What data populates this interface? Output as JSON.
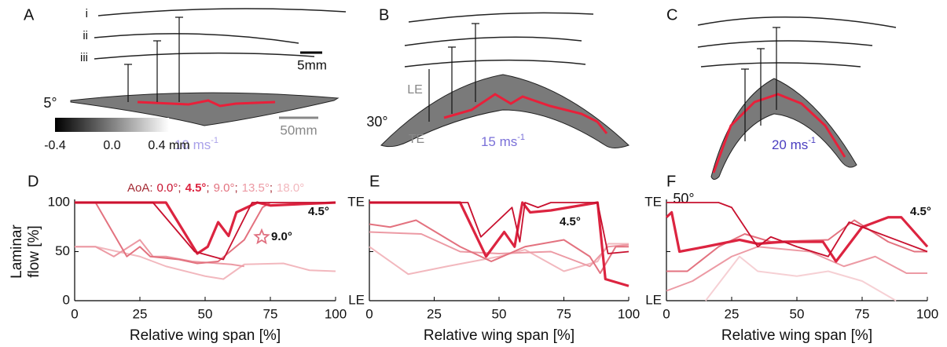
{
  "images": [
    {
      "panel_label": "A",
      "trace_labels": [
        "i",
        "ii",
        "iii"
      ],
      "angle": "5°",
      "speed": "10 ms",
      "speed_exp": "-1",
      "scale_small": "5mm",
      "scale_large": "50mm",
      "colorbar": {
        "ticks": [
          {
            "value": -0.4,
            "label": "-0.4"
          },
          {
            "value": 0.0,
            "label": "0.0"
          },
          {
            "value": 0.4,
            "label": "0.4 mm"
          }
        ],
        "lim": [
          -0.4,
          0.4
        ]
      }
    },
    {
      "panel_label": "B",
      "angle": "30°",
      "speed": "15 ms",
      "speed_exp": "-1",
      "leading_edge": "LE",
      "trailing_edge": "TE"
    },
    {
      "panel_label": "C",
      "angle": "50°",
      "speed": "20 ms",
      "speed_exp": "-1"
    }
  ],
  "chart_data": [
    {
      "type": "line",
      "panel_label": "D",
      "legend_title": "AoA:",
      "legend_separator": ";",
      "x_label": "Relative wing span [%]",
      "y_label": [
        "Laminar",
        "flow [%]"
      ],
      "xlim": [
        0,
        100
      ],
      "xticks": [
        0,
        25,
        50,
        75,
        100
      ],
      "ylim": [
        0,
        100
      ],
      "yticks": [
        0,
        50,
        100
      ],
      "series": [
        {
          "name": "0.0°",
          "color": "#c8102e",
          "line_width": 1.8,
          "x": [
            0,
            30,
            46,
            57,
            68,
            100
          ],
          "values": [
            100,
            100,
            50,
            42,
            100,
            100
          ]
        },
        {
          "name": "4.5°",
          "color": "#dc2440",
          "line_width": 3.2,
          "x": [
            0,
            35,
            47,
            51,
            55,
            59,
            62,
            70,
            75,
            100
          ],
          "values": [
            100,
            100,
            48,
            55,
            80,
            66,
            90,
            100,
            97,
            100
          ]
        },
        {
          "name": "9.0°",
          "color": "#e3727f",
          "line_width": 2,
          "x": [
            0,
            8,
            20,
            25,
            29,
            40,
            47,
            55,
            65,
            72,
            75
          ],
          "values": [
            100,
            100,
            45,
            55,
            45,
            42,
            38,
            40,
            62,
            95,
            100
          ]
        },
        {
          "name": "13.5°",
          "color": "#ec9aa4",
          "line_width": 2,
          "x": [
            0,
            8,
            15,
            25,
            30,
            35,
            45,
            60,
            65
          ],
          "values": [
            55,
            55,
            45,
            62,
            45,
            45,
            40,
            37,
            35
          ]
        },
        {
          "name": "18.0°",
          "color": "#f2b8be",
          "line_width": 2,
          "x": [
            0,
            8,
            25,
            35,
            50,
            57,
            65,
            80,
            90,
            100
          ],
          "values": [
            55,
            55,
            45,
            35,
            25,
            22,
            37,
            38,
            31,
            30
          ]
        }
      ],
      "annotations": [
        {
          "text": "4.5°",
          "color": "#a32a33"
        },
        {
          "text": "9.0°",
          "color": "#e07080",
          "marker": "star"
        }
      ]
    },
    {
      "type": "line",
      "panel_label": "E",
      "x_label": "Relative wing span [%]",
      "xlim": [
        0,
        100
      ],
      "xticks": [
        0,
        25,
        50,
        75,
        100
      ],
      "ylim": [
        0,
        100
      ],
      "yticks": [
        {
          "value": 0,
          "label": "LE"
        },
        {
          "value": 50,
          "label": null
        },
        {
          "value": 100,
          "label": "TE"
        }
      ],
      "series": [
        {
          "name": "0.0°",
          "color": "#c8102e",
          "line_width": 1.8,
          "x": [
            0,
            38,
            43,
            55,
            58,
            60,
            65,
            70,
            88,
            92,
            100
          ],
          "values": [
            100,
            100,
            65,
            95,
            60,
            100,
            95,
            100,
            100,
            48,
            50
          ]
        },
        {
          "name": "4.5°",
          "color": "#dc2440",
          "line_width": 3.2,
          "x": [
            0,
            35,
            45,
            52,
            56,
            59,
            62,
            70,
            88,
            91,
            100
          ],
          "values": [
            100,
            100,
            45,
            70,
            55,
            100,
            90,
            92,
            100,
            22,
            15
          ]
        },
        {
          "name": "9.0°",
          "color": "#e3727f",
          "line_width": 2,
          "x": [
            0,
            8,
            18,
            35,
            47,
            60,
            75,
            85,
            89,
            95,
            100
          ],
          "values": [
            78,
            75,
            82,
            55,
            40,
            55,
            62,
            45,
            28,
            55,
            55
          ]
        },
        {
          "name": "13.5°",
          "color": "#ec9aa4",
          "line_width": 2,
          "x": [
            0,
            20,
            35,
            50,
            70,
            85,
            92,
            100
          ],
          "values": [
            70,
            68,
            50,
            48,
            50,
            35,
            55,
            57
          ]
        },
        {
          "name": "18.0°",
          "color": "#f2b8be",
          "line_width": 2,
          "x": [
            0,
            15,
            30,
            50,
            60,
            75,
            88,
            92,
            100
          ],
          "values": [
            55,
            27,
            35,
            45,
            52,
            30,
            40,
            58,
            58
          ]
        }
      ],
      "annotations": [
        {
          "text": "4.5°",
          "color": "#a32a33"
        }
      ]
    },
    {
      "type": "line",
      "panel_label": "F",
      "x_label": "Relative wing span [%]",
      "xlim": [
        0,
        100
      ],
      "xticks": [
        0,
        25,
        50,
        75,
        100
      ],
      "ylim": [
        0,
        100
      ],
      "yticks": [
        {
          "value": 0,
          "label": "LE"
        },
        {
          "value": 50,
          "label": null
        },
        {
          "value": 100,
          "label": "TE"
        }
      ],
      "series": [
        {
          "name": "0.0°",
          "color": "#c8102e",
          "line_width": 1.8,
          "x": [
            0,
            20,
            25,
            35,
            40,
            50,
            62,
            70,
            80,
            100
          ],
          "values": [
            100,
            100,
            95,
            55,
            65,
            55,
            45,
            80,
            70,
            50
          ]
        },
        {
          "name": "4.5°",
          "color": "#dc2440",
          "line_width": 3.2,
          "x": [
            0,
            2,
            5,
            15,
            28,
            35,
            45,
            60,
            65,
            75,
            85,
            90,
            100
          ],
          "values": [
            85,
            90,
            50,
            55,
            62,
            58,
            60,
            60,
            40,
            75,
            85,
            85,
            55
          ]
        },
        {
          "name": "9.0°",
          "color": "#e3727f",
          "line_width": 2,
          "x": [
            0,
            8,
            20,
            30,
            40,
            62,
            72,
            85,
            95,
            100
          ],
          "values": [
            30,
            30,
            55,
            68,
            60,
            62,
            82,
            60,
            50,
            50
          ]
        },
        {
          "name": "13.5°",
          "color": "#ec9aa4",
          "line_width": 2,
          "x": [
            0,
            10,
            25,
            35,
            55,
            68,
            80,
            92,
            100
          ],
          "values": [
            10,
            20,
            45,
            55,
            50,
            35,
            45,
            28,
            28
          ]
        },
        {
          "name": "18.0°",
          "color": "#f6d0d4",
          "line_width": 2,
          "x": [
            15,
            28,
            35,
            50,
            62,
            75,
            88
          ],
          "values": [
            0,
            45,
            30,
            25,
            30,
            20,
            0
          ]
        }
      ],
      "annotations": [
        {
          "text": "4.5°",
          "color": "#a32a33"
        }
      ]
    }
  ]
}
